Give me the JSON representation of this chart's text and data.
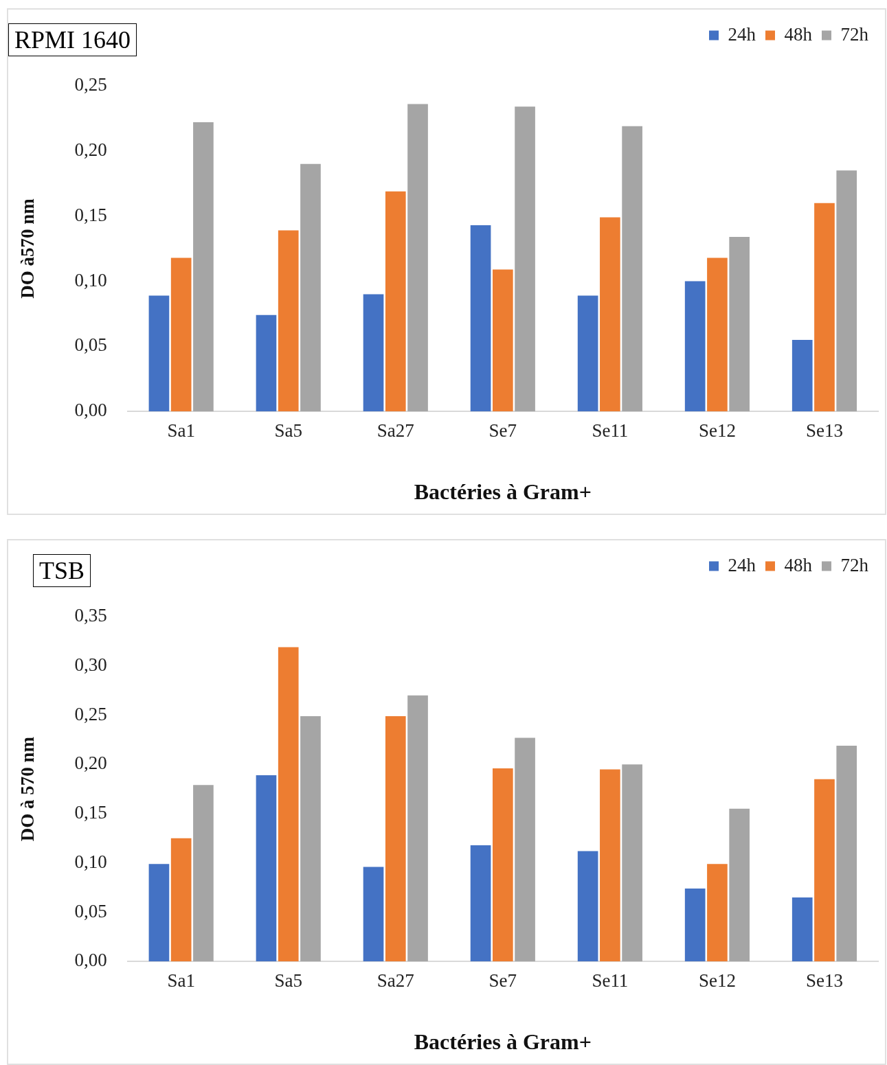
{
  "chart_data": [
    {
      "type": "bar",
      "title": "RPMI 1640",
      "xlabel": "Bactéries à Gram+",
      "ylabel": "DO à570 nm",
      "categories": [
        "Sa1",
        "Sa5",
        "Sa27",
        "Se7",
        "Se11",
        "Se12",
        "Se13"
      ],
      "series": [
        {
          "name": "24h",
          "color": "#4472c4",
          "values": [
            0.089,
            0.074,
            0.09,
            0.143,
            0.089,
            0.1,
            0.055
          ]
        },
        {
          "name": "48h",
          "color": "#ed7d31",
          "values": [
            0.118,
            0.139,
            0.169,
            0.109,
            0.149,
            0.118,
            0.16
          ]
        },
        {
          "name": "72h",
          "color": "#a5a5a5",
          "values": [
            0.222,
            0.19,
            0.236,
            0.234,
            0.219,
            0.134,
            0.185
          ]
        }
      ],
      "ylim": [
        0,
        0.25
      ],
      "yticks": [
        {
          "value": 0,
          "label": "0,00"
        },
        {
          "value": 0.05,
          "label": "0,05"
        },
        {
          "value": 0.1,
          "label": "0,10"
        },
        {
          "value": 0.15,
          "label": "0,15"
        },
        {
          "value": 0.2,
          "label": "0,20"
        },
        {
          "value": 0.25,
          "label": "0,25"
        }
      ],
      "grid": false,
      "legend": "top right"
    },
    {
      "type": "bar",
      "title": "TSB",
      "xlabel": "Bactéries à Gram+",
      "ylabel": "DO à 570 nm",
      "categories": [
        "Sa1",
        "Sa5",
        "Sa27",
        "Se7",
        "Se11",
        "Se12",
        "Se13"
      ],
      "series": [
        {
          "name": "24h",
          "color": "#4472c4",
          "values": [
            0.099,
            0.189,
            0.096,
            0.118,
            0.112,
            0.074,
            0.065
          ]
        },
        {
          "name": "48h",
          "color": "#ed7d31",
          "values": [
            0.125,
            0.319,
            0.249,
            0.196,
            0.195,
            0.099,
            0.185
          ]
        },
        {
          "name": "72h",
          "color": "#a5a5a5",
          "values": [
            0.179,
            0.249,
            0.27,
            0.227,
            0.2,
            0.155,
            0.219
          ]
        }
      ],
      "ylim": [
        0,
        0.35
      ],
      "yticks": [
        {
          "value": 0,
          "label": "0,00"
        },
        {
          "value": 0.05,
          "label": "0,05"
        },
        {
          "value": 0.1,
          "label": "0,10"
        },
        {
          "value": 0.15,
          "label": "0,15"
        },
        {
          "value": 0.2,
          "label": "0,20"
        },
        {
          "value": 0.25,
          "label": "0,25"
        },
        {
          "value": 0.3,
          "label": "0,30"
        },
        {
          "value": 0.35,
          "label": "0,35"
        }
      ],
      "grid": false,
      "legend": "top right"
    }
  ]
}
